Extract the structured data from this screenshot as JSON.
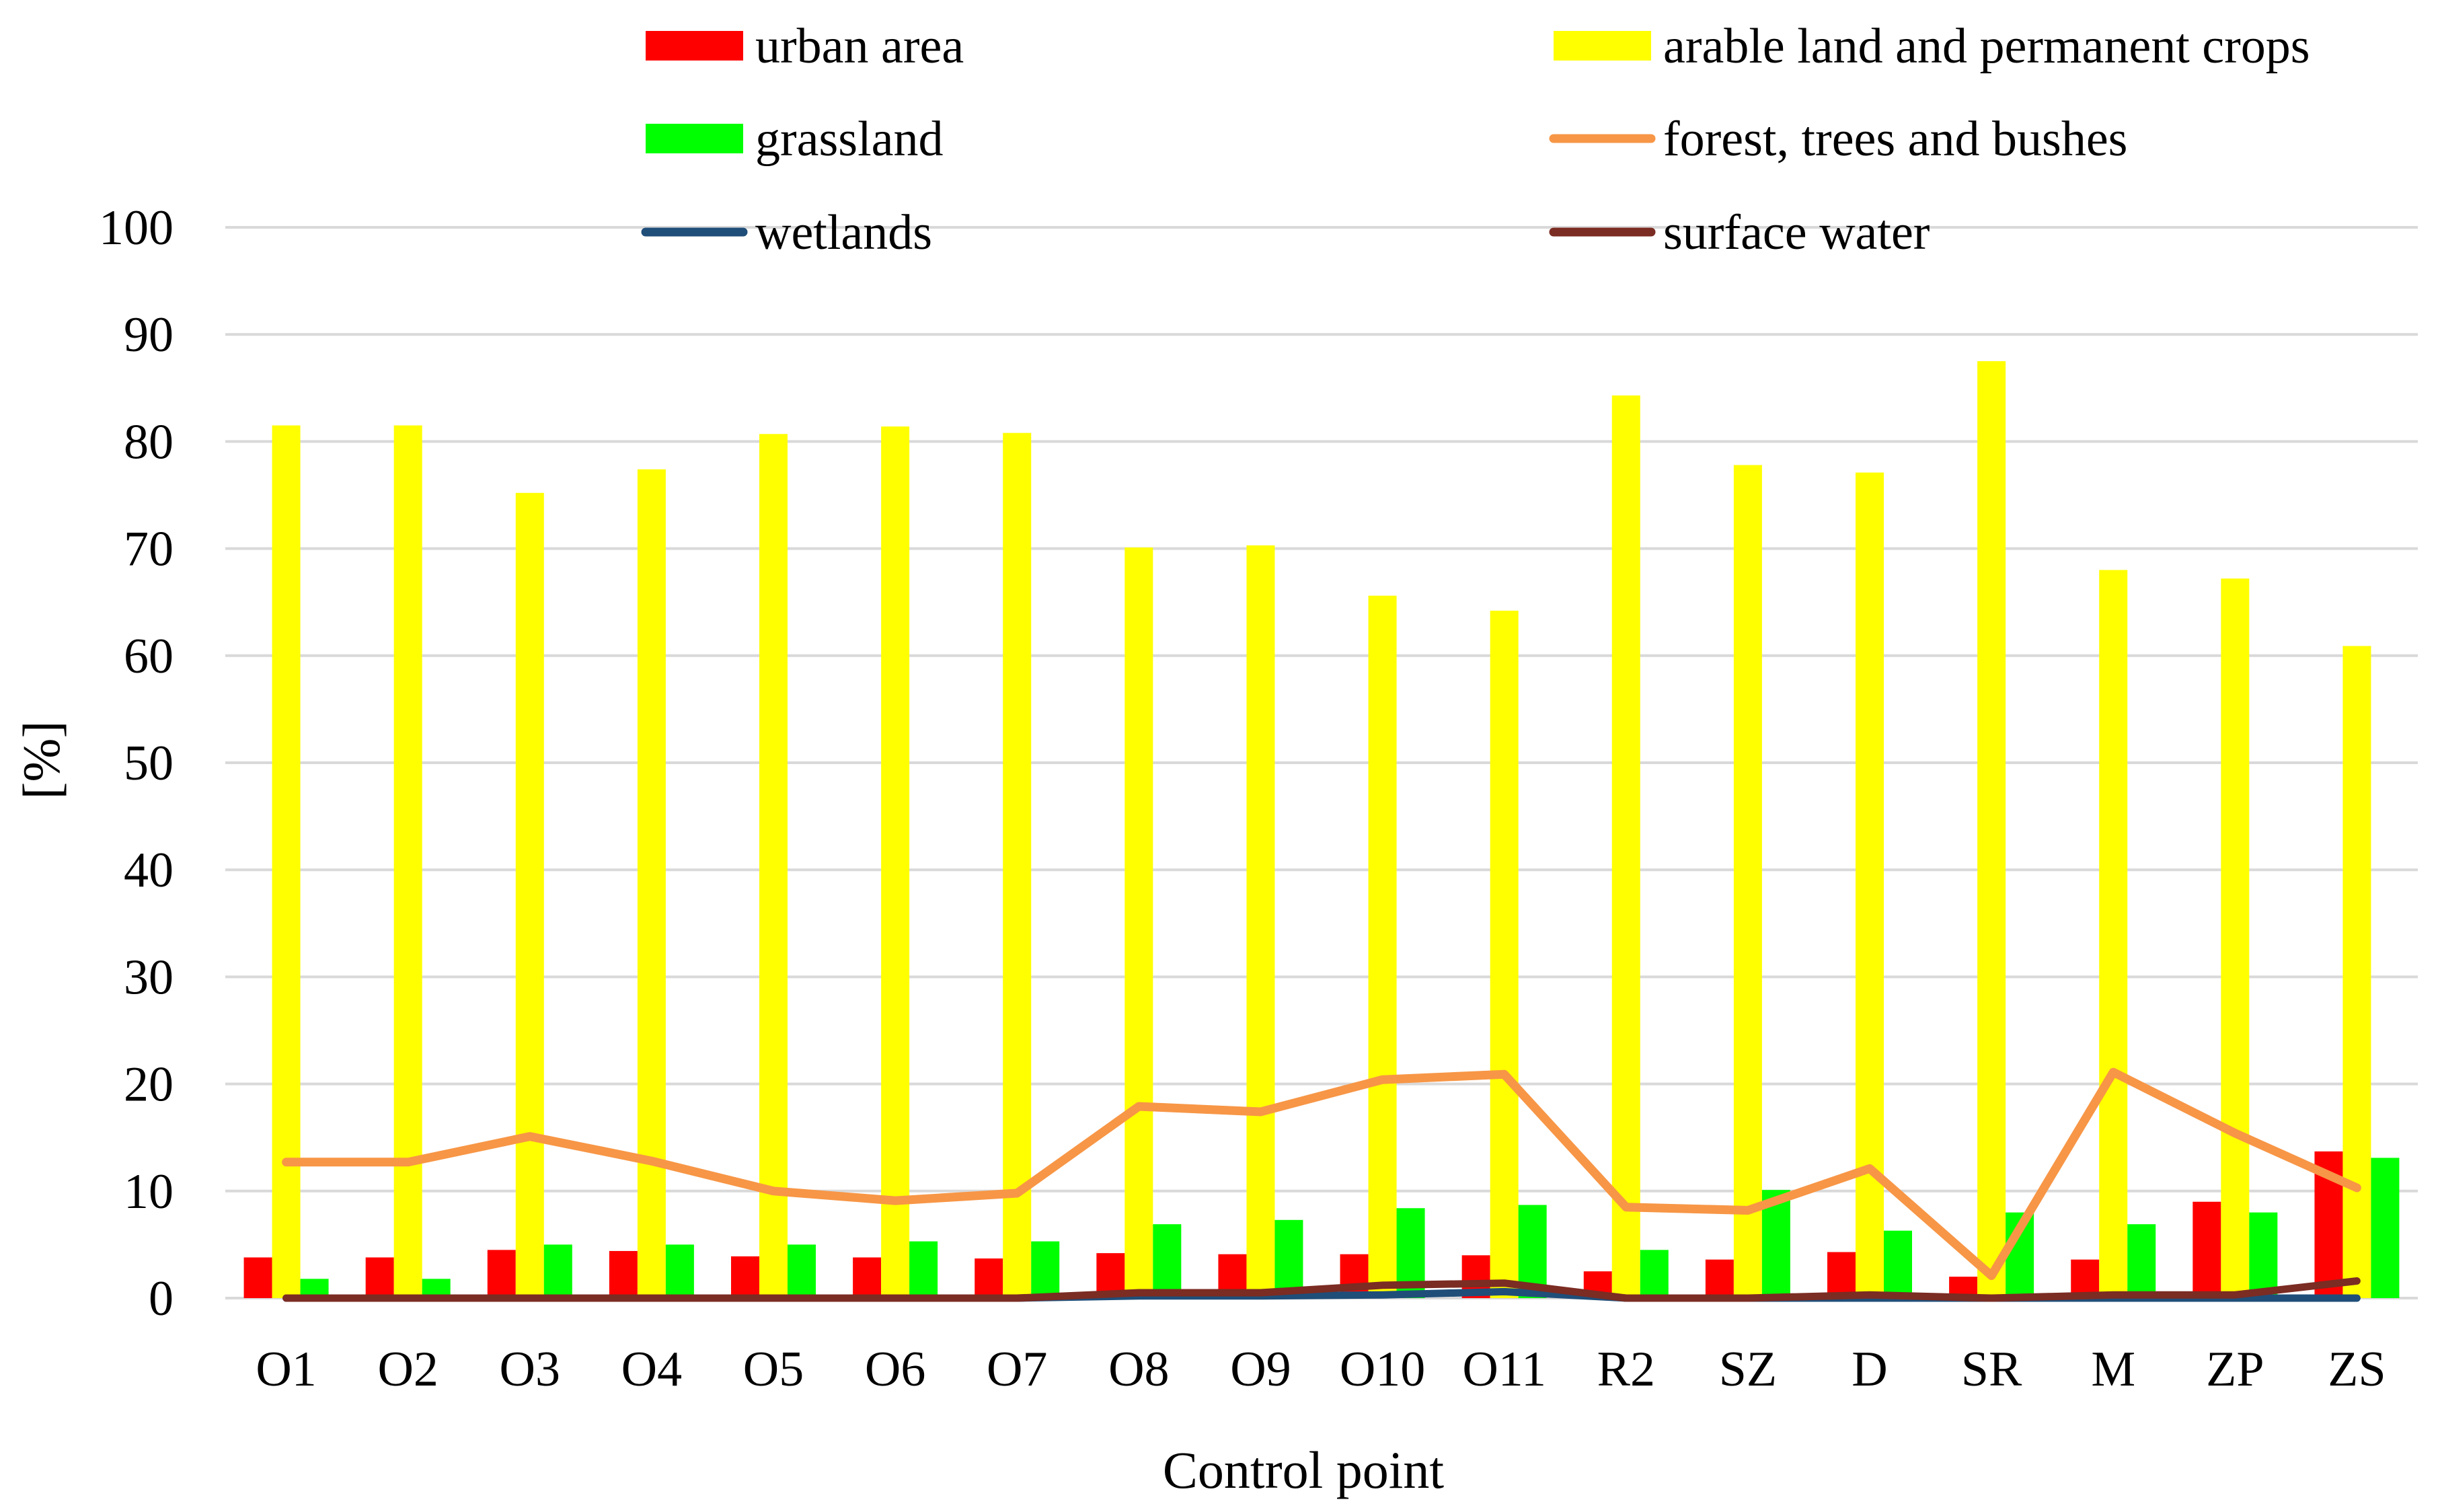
{
  "chart_data": {
    "type": "bar",
    "title": "",
    "xlabel": "Control point",
    "ylabel": "[%]",
    "ylim": [
      0,
      100
    ],
    "yticks": [
      0,
      10,
      20,
      30,
      40,
      50,
      60,
      70,
      80,
      90,
      100
    ],
    "grid": true,
    "legend_position": "top",
    "categories": [
      "O1",
      "O2",
      "O3",
      "O4",
      "O5",
      "O6",
      "O7",
      "O8",
      "O9",
      "O10",
      "O11",
      "R2",
      "SZ",
      "D",
      "SR",
      "M",
      "ZP",
      "ZS"
    ],
    "series": [
      {
        "name": "urban area",
        "kind": "bar",
        "color": "#ff0000",
        "values": [
          3.8,
          3.8,
          4.5,
          4.4,
          3.9,
          3.8,
          3.7,
          4.2,
          4.1,
          4.1,
          4.0,
          2.5,
          3.6,
          4.3,
          2.0,
          3.6,
          9.0,
          13.7
        ]
      },
      {
        "name": "arable land and permanent crops",
        "kind": "bar",
        "color": "#ffff00",
        "values": [
          81.5,
          81.5,
          75.2,
          77.4,
          80.7,
          81.4,
          80.8,
          70.1,
          70.3,
          65.6,
          64.2,
          84.3,
          77.8,
          77.1,
          87.5,
          68.0,
          67.2,
          60.9
        ]
      },
      {
        "name": "grassland",
        "kind": "bar",
        "color": "#00ff00",
        "values": [
          1.8,
          1.8,
          5.0,
          5.0,
          5.0,
          5.3,
          5.3,
          6.9,
          7.3,
          8.4,
          8.7,
          4.5,
          10.1,
          6.3,
          8.0,
          6.9,
          8.0,
          13.1
        ]
      },
      {
        "name": "forest, trees and bushes",
        "kind": "line",
        "color": "#f79646",
        "values": [
          12.7,
          12.7,
          15.1,
          12.8,
          10.0,
          9.1,
          9.8,
          17.9,
          17.4,
          20.4,
          20.9,
          8.5,
          8.2,
          12.1,
          2.1,
          21.1,
          15.4,
          10.3
        ]
      },
      {
        "name": "wetlands",
        "kind": "line",
        "color": "#1f4e79",
        "values": [
          0.0,
          0.0,
          0.0,
          0.0,
          0.0,
          0.0,
          0.0,
          0.2,
          0.2,
          0.3,
          0.6,
          0.0,
          0.0,
          0.0,
          0.0,
          0.0,
          0.0,
          0.0
        ]
      },
      {
        "name": "surface water",
        "kind": "line",
        "color": "#7b2c23",
        "values": [
          0.0,
          0.0,
          0.0,
          0.0,
          0.0,
          0.0,
          0.0,
          0.5,
          0.5,
          1.2,
          1.4,
          0.0,
          0.0,
          0.3,
          0.0,
          0.3,
          0.3,
          1.6
        ]
      }
    ]
  }
}
